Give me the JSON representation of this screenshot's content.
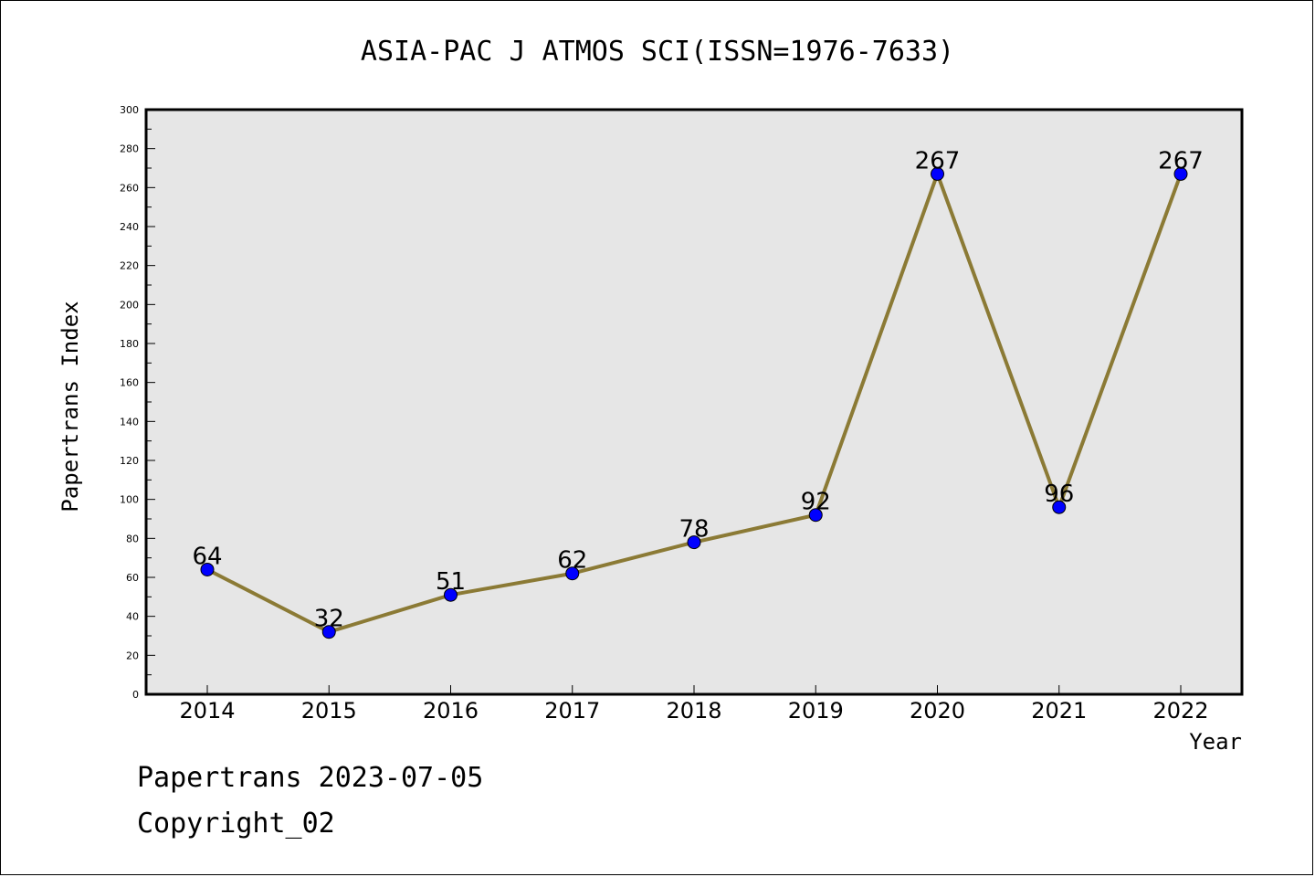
{
  "colors": {
    "plot_background": "#e6e6e6",
    "line": "#8b7a35",
    "marker": "#0000ff",
    "axis": "#000000"
  },
  "chart_data": {
    "type": "line",
    "title": "ASIA-PAC J ATMOS SCI(ISSN=1976-7633)",
    "xlabel": "Year",
    "ylabel": "Papertrans Index",
    "categories": [
      "2014",
      "2015",
      "2016",
      "2017",
      "2018",
      "2019",
      "2020",
      "2021",
      "2022"
    ],
    "series": [
      {
        "values": [
          64,
          32,
          51,
          62,
          78,
          92,
          267,
          96,
          267
        ],
        "data_labels": [
          "64",
          "32",
          "51",
          "62",
          "78",
          "92",
          "267",
          "96",
          "267"
        ]
      }
    ],
    "ylim": [
      0,
      300
    ],
    "y_major_step": 20,
    "y_minor_step": 10,
    "grid": false,
    "legend": "none"
  },
  "footer": {
    "date_line": "Papertrans 2023-07-05",
    "copyright_line": "Copyright_02"
  }
}
